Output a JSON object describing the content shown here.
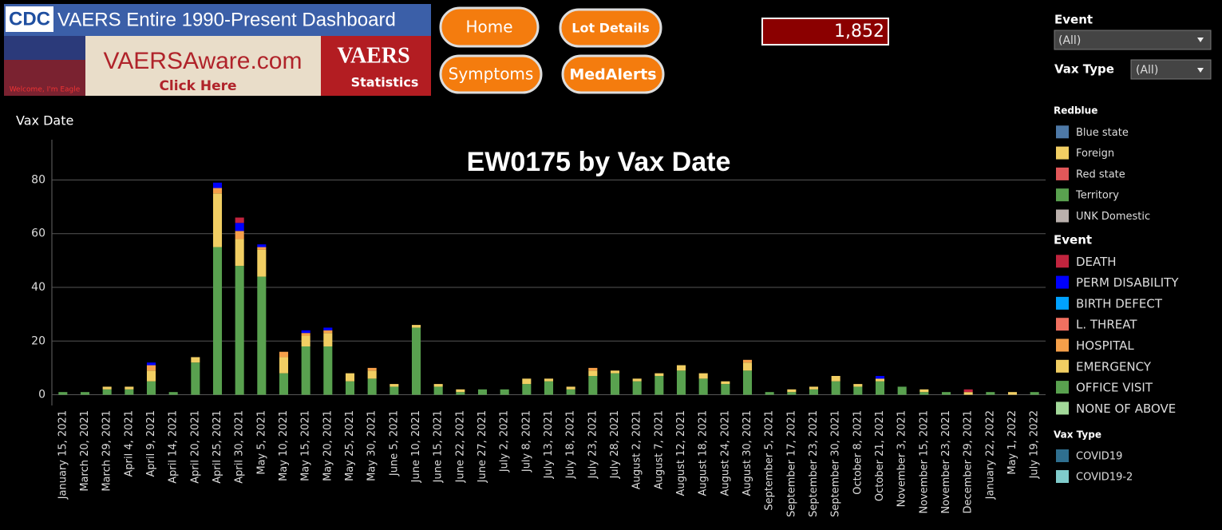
{
  "header": {
    "banner_title": "VAERS Entire 1990-Present Dashboard",
    "cdc": "CDC",
    "site": "VAERSAware.com",
    "site_link": "Click Here",
    "eagle_caption": "Welcome, I'm Eagle",
    "logo_title": "VAERS",
    "logo_subtitle": "Statistics"
  },
  "buttons": [
    "Home",
    "Lot Details",
    "Symptoms",
    "MedAlerts"
  ],
  "counter": "1,852",
  "filters": [
    {
      "label": "Event",
      "value": "(All)"
    },
    {
      "label": "Vax Type",
      "value": "(All)"
    }
  ],
  "legends": [
    {
      "title": "Redblue",
      "items": [
        {
          "name": "Blue state",
          "color": "#4e79a7"
        },
        {
          "name": "Foreign",
          "color": "#f1ce63"
        },
        {
          "name": "Red state",
          "color": "#e15759"
        },
        {
          "name": "Territory",
          "color": "#59a14f"
        },
        {
          "name": "UNK Domestic",
          "color": "#bab0ac"
        }
      ]
    },
    {
      "title": "Vax Type",
      "items": [
        {
          "name": "COVID19",
          "color": "#2f6f8f"
        },
        {
          "name": "COVID19-2",
          "color": "#80cccc"
        }
      ]
    }
  ],
  "chart_data": {
    "type": "stacked_bar",
    "title": "EW0175 by Vax Date",
    "x_label": "Vax Date",
    "legend_title": "Event",
    "categories": [
      "January 15, 2021",
      "March 20, 2021",
      "March 29, 2021",
      "April 4, 2021",
      "April 9, 2021",
      "April 14, 2021",
      "April 20, 2021",
      "April 25, 2021",
      "April 30, 2021",
      "May 5, 2021",
      "May 10, 2021",
      "May 15, 2021",
      "May 20, 2021",
      "May 25, 2021",
      "May 30, 2021",
      "June 5, 2021",
      "June 10, 2021",
      "June 15, 2021",
      "June 22, 2021",
      "June 27, 2021",
      "July 2, 2021",
      "July 8, 2021",
      "July 13, 2021",
      "July 18, 2021",
      "July 23, 2021",
      "July 28, 2021",
      "August 2, 2021",
      "August 7, 2021",
      "August 12, 2021",
      "August 18, 2021",
      "August 24, 2021",
      "August 30, 2021",
      "September 5, 2021",
      "September 17, 2021",
      "September 23, 2021",
      "September 30, 2021",
      "October 8, 2021",
      "October 21, 2021",
      "November 3, 2021",
      "November 15, 2021",
      "November 23, 2021",
      "December 29, 2021",
      "January 22, 2022",
      "May 1, 2022",
      "July 19, 2022"
    ],
    "series": [
      {
        "name": "DEATH",
        "color": "#c1243e",
        "values": [
          0,
          0,
          0,
          0,
          0,
          0,
          0,
          0,
          2,
          0,
          0,
          0,
          0,
          0,
          0,
          0,
          0,
          0,
          0,
          0,
          0,
          0,
          0,
          0,
          0,
          0,
          0,
          0,
          0,
          0,
          0,
          0,
          0,
          0,
          0,
          0,
          0,
          0,
          0,
          0,
          0,
          1,
          0,
          0,
          0
        ]
      },
      {
        "name": "PERM DISABILITY",
        "color": "#0000ff",
        "values": [
          0,
          0,
          0,
          0,
          1,
          0,
          0,
          2,
          3,
          1,
          0,
          1,
          1,
          0,
          0,
          0,
          0,
          0,
          0,
          0,
          0,
          0,
          0,
          0,
          0,
          0,
          0,
          0,
          0,
          0,
          0,
          0,
          0,
          0,
          0,
          0,
          0,
          1,
          0,
          0,
          0,
          0,
          0,
          0,
          0
        ]
      },
      {
        "name": "BIRTH DEFECT",
        "color": "#00a2ff",
        "values": [
          0,
          0,
          0,
          0,
          0,
          0,
          0,
          0,
          0,
          0,
          0,
          0,
          0,
          0,
          0,
          0,
          0,
          0,
          0,
          0,
          0,
          0,
          0,
          0,
          0,
          0,
          0,
          0,
          0,
          0,
          0,
          0,
          0,
          0,
          0,
          0,
          0,
          0,
          0,
          0,
          0,
          0,
          0,
          0,
          0
        ]
      },
      {
        "name": "L. THREAT",
        "color": "#f07060",
        "values": [
          0,
          0,
          0,
          0,
          0,
          0,
          0,
          0,
          0,
          0,
          0,
          0,
          0,
          0,
          0,
          0,
          0,
          0,
          0,
          0,
          0,
          0,
          0,
          0,
          0,
          0,
          0,
          0,
          0,
          0,
          0,
          0,
          0,
          0,
          0,
          0,
          0,
          0,
          0,
          0,
          0,
          0,
          0,
          0,
          0
        ]
      },
      {
        "name": "HOSPITAL",
        "color": "#f5a04a",
        "values": [
          0,
          0,
          0,
          0,
          2,
          0,
          0,
          2,
          3,
          1,
          2,
          1,
          1,
          0,
          1,
          0,
          0,
          0,
          0,
          0,
          0,
          0,
          0,
          0,
          1,
          0,
          0,
          0,
          0,
          0,
          0,
          1,
          0,
          0,
          0,
          0,
          0,
          0,
          0,
          0,
          0,
          0,
          0,
          0,
          0
        ]
      },
      {
        "name": "EMERGENCY",
        "color": "#f1ce63",
        "values": [
          0,
          0,
          1,
          1,
          4,
          0,
          2,
          20,
          10,
          10,
          6,
          4,
          5,
          3,
          3,
          1,
          1,
          1,
          1,
          0,
          0,
          2,
          1,
          1,
          2,
          1,
          1,
          1,
          2,
          2,
          1,
          3,
          0,
          1,
          1,
          2,
          1,
          1,
          0,
          1,
          0,
          1,
          0,
          1,
          0
        ]
      },
      {
        "name": "OFFICE VISIT",
        "color": "#59a14f",
        "values": [
          1,
          1,
          2,
          2,
          5,
          1,
          12,
          55,
          48,
          44,
          8,
          18,
          18,
          5,
          6,
          3,
          25,
          3,
          1,
          2,
          2,
          4,
          5,
          2,
          7,
          8,
          5,
          7,
          9,
          6,
          4,
          9,
          1,
          1,
          2,
          5,
          3,
          5,
          3,
          1,
          1,
          0,
          1,
          0,
          1
        ]
      },
      {
        "name": "NONE OF ABOVE",
        "color": "#a3d99a",
        "values": [
          0,
          0,
          0,
          0,
          0,
          0,
          0,
          0,
          0,
          0,
          0,
          0,
          0,
          0,
          0,
          0,
          0,
          0,
          0,
          0,
          0,
          0,
          0,
          0,
          0,
          0,
          0,
          0,
          0,
          0,
          0,
          0,
          0,
          0,
          0,
          0,
          0,
          0,
          0,
          0,
          0,
          0,
          0,
          0,
          0
        ]
      }
    ],
    "ylim": [
      -4,
      95
    ],
    "yticks": [
      0,
      20,
      40,
      60,
      80
    ],
    "grid": true
  }
}
